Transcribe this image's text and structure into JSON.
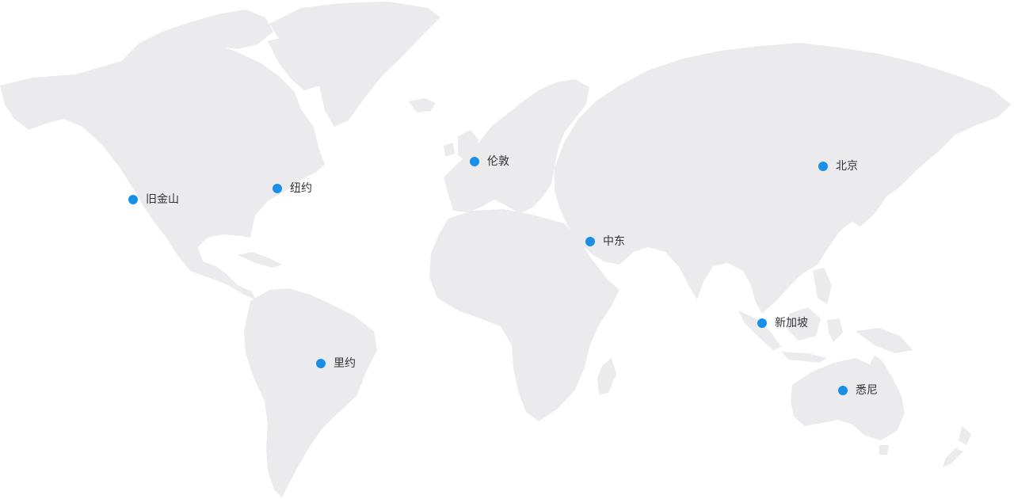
{
  "map": {
    "land_color": "#ebebed",
    "marker_color": "#1a8fe6",
    "locations": [
      {
        "id": "san-francisco",
        "label": "旧金山"
      },
      {
        "id": "new-york",
        "label": "纽约"
      },
      {
        "id": "london",
        "label": "伦敦"
      },
      {
        "id": "middle-east",
        "label": "中东"
      },
      {
        "id": "beijing",
        "label": "北京"
      },
      {
        "id": "singapore",
        "label": "新加坡"
      },
      {
        "id": "rio",
        "label": "里约"
      },
      {
        "id": "sydney",
        "label": "悉尼"
      }
    ]
  }
}
